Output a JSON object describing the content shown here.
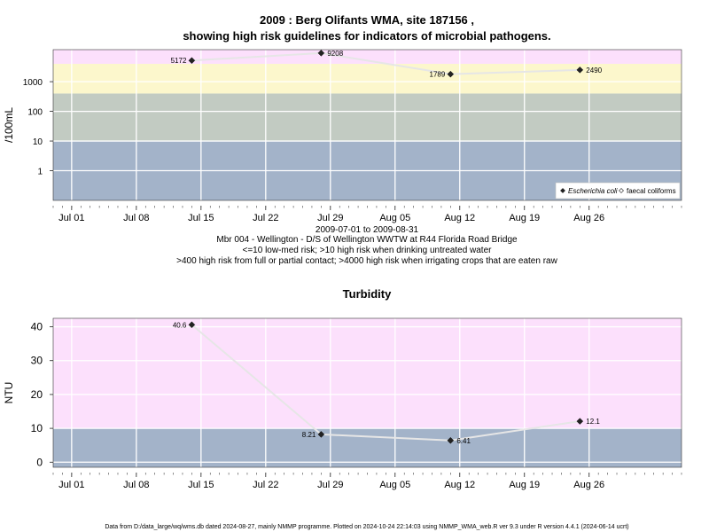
{
  "chart_data": [
    {
      "type": "line",
      "title": "2009 : Berg Olifants WMA, site 187156 ,",
      "subtitle": "showing high risk guidelines for indicators of microbial pathogens.",
      "ylabel": "/100mL",
      "yscale": "log",
      "ylim": [
        0.1,
        12000
      ],
      "xlim": [
        "2009-06-29",
        "2009-09-05"
      ],
      "x_ticks": [
        {
          "date": "2009-07-01",
          "label": "Jul 01"
        },
        {
          "date": "2009-07-08",
          "label": "Jul 08"
        },
        {
          "date": "2009-07-15",
          "label": "Jul 15"
        },
        {
          "date": "2009-07-22",
          "label": "Jul 22"
        },
        {
          "date": "2009-07-29",
          "label": "Jul 29"
        },
        {
          "date": "2009-08-05",
          "label": "Aug 05"
        },
        {
          "date": "2009-08-12",
          "label": "Aug 12"
        },
        {
          "date": "2009-08-19",
          "label": "Aug 19"
        },
        {
          "date": "2009-08-26",
          "label": "Aug 26"
        }
      ],
      "y_ticks": [
        {
          "value": 1,
          "label": "1"
        },
        {
          "value": 10,
          "label": "10"
        },
        {
          "value": 100,
          "label": "100"
        },
        {
          "value": 1000,
          "label": "1000"
        }
      ],
      "bands": [
        {
          "from": 0.1,
          "to": 10,
          "color": "#a3b3c9"
        },
        {
          "from": 10,
          "to": 400,
          "color": "#c2cbc2"
        },
        {
          "from": 400,
          "to": 4000,
          "color": "#fcf7cc"
        },
        {
          "from": 4000,
          "to": 12000,
          "color": "#fce0fc"
        }
      ],
      "series": [
        {
          "name": "Escherichia coli",
          "marker": "filled-diamond",
          "color": "#222222",
          "points": [
            {
              "x": "2009-07-14",
              "y": 5172,
              "label": "5172",
              "label_side": "left"
            },
            {
              "x": "2009-07-28",
              "y": 9208,
              "label": "9208",
              "label_side": "right"
            },
            {
              "x": "2009-08-11",
              "y": 1789,
              "label": "1789",
              "label_side": "left"
            },
            {
              "x": "2009-08-25",
              "y": 2490,
              "label": "2490",
              "label_side": "right"
            }
          ]
        }
      ],
      "legend": {
        "position": "bottom-right",
        "items": [
          {
            "label": "Escherichia coli",
            "italic": true,
            "marker": "filled-diamond"
          },
          {
            "label": "faecal coliforms",
            "italic": false,
            "marker": "open-diamond"
          }
        ]
      },
      "caption": [
        "2009-07-01 to 2009-08-31",
        "Mbr 004 - Wellington - D/S of Wellington WWTW at R44 Florida Road Bridge",
        "<=10 low-med risk; >10 high risk when drinking untreated water",
        ">400 high risk from full or partial contact; >4000 high risk when irrigating crops that are eaten raw"
      ]
    },
    {
      "type": "line",
      "title": "Turbidity",
      "ylabel": "NTU",
      "ylim": [
        -1.5,
        42.5
      ],
      "xlim": [
        "2009-06-29",
        "2009-09-05"
      ],
      "x_ticks": [
        {
          "date": "2009-07-01",
          "label": "Jul 01"
        },
        {
          "date": "2009-07-08",
          "label": "Jul 08"
        },
        {
          "date": "2009-07-15",
          "label": "Jul 15"
        },
        {
          "date": "2009-07-22",
          "label": "Jul 22"
        },
        {
          "date": "2009-07-29",
          "label": "Jul 29"
        },
        {
          "date": "2009-08-05",
          "label": "Aug 05"
        },
        {
          "date": "2009-08-12",
          "label": "Aug 12"
        },
        {
          "date": "2009-08-19",
          "label": "Aug 19"
        },
        {
          "date": "2009-08-26",
          "label": "Aug 26"
        }
      ],
      "y_ticks": [
        {
          "value": 0,
          "label": "0"
        },
        {
          "value": 10,
          "label": "10"
        },
        {
          "value": 20,
          "label": "20"
        },
        {
          "value": 30,
          "label": "30"
        },
        {
          "value": 40,
          "label": "40"
        }
      ],
      "bands": [
        {
          "from": -1.5,
          "to": 10,
          "color": "#a3b3c9"
        },
        {
          "from": 10,
          "to": 42.5,
          "color": "#fce0fc"
        }
      ],
      "series": [
        {
          "marker": "filled-diamond",
          "color": "#222222",
          "points": [
            {
              "x": "2009-07-14",
              "y": 40.6,
              "label": "40.6",
              "label_side": "left"
            },
            {
              "x": "2009-07-28",
              "y": 8.21,
              "label": "8.21",
              "label_side": "left"
            },
            {
              "x": "2009-08-11",
              "y": 6.41,
              "label": "6.41",
              "label_side": "right"
            },
            {
              "x": "2009-08-25",
              "y": 12.1,
              "label": "12.1",
              "label_side": "right"
            }
          ]
        }
      ]
    }
  ],
  "footer": "Data from D:/data_large/wq/wms.db dated 2024-08-27, mainly NMMP programme. Plotted on 2024-10-24 22:14:03 using NMMP_WMA_web.R ver 9.3 under R version 4.4.1 (2024-06-14 ucrt)"
}
